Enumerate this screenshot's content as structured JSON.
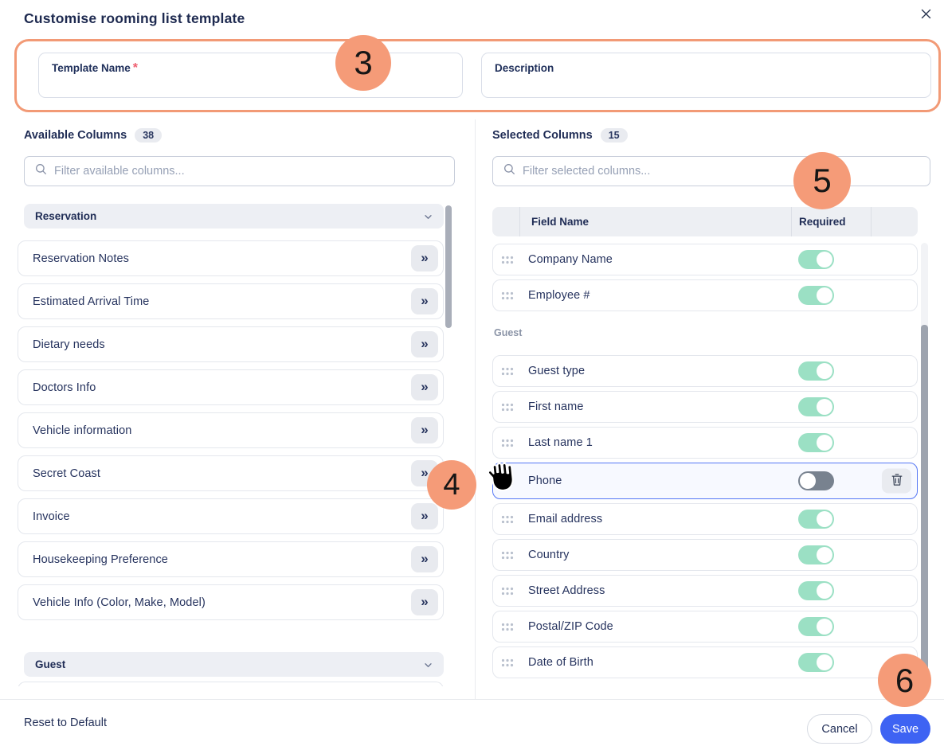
{
  "modal": {
    "title": "Customise rooming list template"
  },
  "form": {
    "template_name": {
      "label": "Template Name",
      "required_mark": "*",
      "value": ""
    },
    "description": {
      "label": "Description",
      "value": ""
    }
  },
  "steps": {
    "three": "3",
    "four": "4",
    "five": "5",
    "six": "6"
  },
  "available": {
    "heading": "Available Columns",
    "count": "38",
    "filter_placeholder": "Filter available columns...",
    "filter_value": "",
    "section_reservation": "Reservation",
    "section_guest": "Guest",
    "items": [
      "Reservation Notes",
      "Estimated Arrival Time",
      "Dietary needs",
      "Doctors Info",
      "Vehicle information",
      "Secret Coast",
      "Invoice",
      "Housekeeping Preference",
      "Vehicle Info (Color, Make, Model)"
    ],
    "move_icon": "»"
  },
  "selected": {
    "heading": "Selected Columns",
    "count": "15",
    "filter_placeholder": "Filter selected columns...",
    "filter_value": "",
    "headers": {
      "field_name": "Field Name",
      "required": "Required"
    },
    "rows": [
      {
        "type": "row",
        "name": "Company Name",
        "required": true
      },
      {
        "type": "row",
        "name": "Employee #",
        "required": true
      },
      {
        "type": "group",
        "label": "Guest"
      },
      {
        "type": "row",
        "name": "Guest type",
        "required": true
      },
      {
        "type": "row",
        "name": "First name",
        "required": true
      },
      {
        "type": "row",
        "name": "Last name 1",
        "required": true
      },
      {
        "type": "row",
        "name": "Phone",
        "required": false,
        "selected": true,
        "deletable": true
      },
      {
        "type": "row",
        "name": "Email address",
        "required": true
      },
      {
        "type": "row",
        "name": "Country",
        "required": true
      },
      {
        "type": "row",
        "name": "Street Address",
        "required": true
      },
      {
        "type": "row",
        "name": "Postal/ZIP Code",
        "required": true
      },
      {
        "type": "row",
        "name": "Date of Birth",
        "required": true
      }
    ]
  },
  "footer": {
    "reset_label": "Reset to Default",
    "cancel_label": "Cancel",
    "save_label": "Save"
  },
  "colors": {
    "accent_orange": "#F59B78",
    "toggle_on": "#9BE0C4",
    "toggle_off": "#78828F",
    "save_blue": "#3E63F3",
    "selected_row_border": "#5577F5",
    "navy_text": "#22305A"
  }
}
